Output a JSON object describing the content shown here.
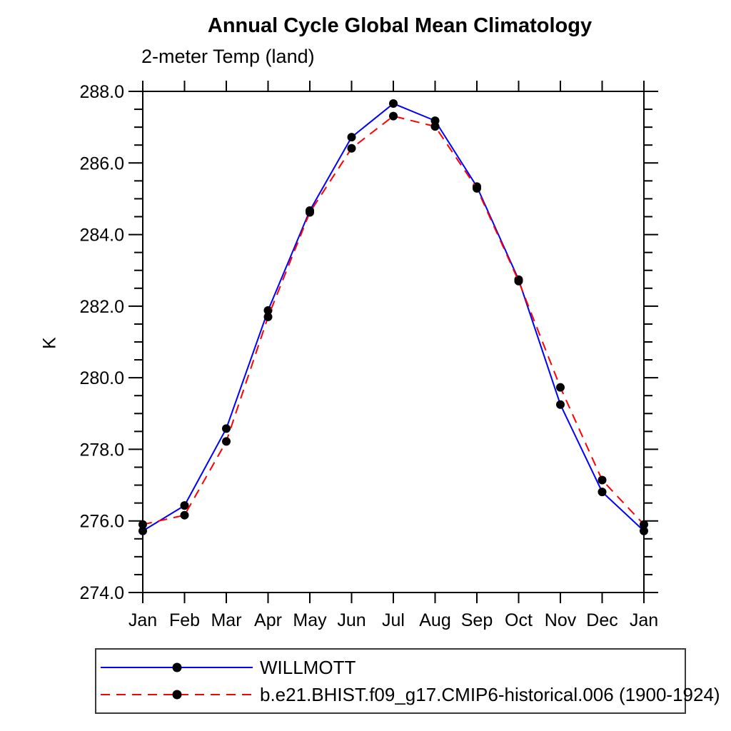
{
  "page": {
    "background": "#ffffff"
  },
  "header": {
    "title": "Annual Cycle Global Mean Climatology",
    "subtitle": "2-meter Temp (land)"
  },
  "chart_data": {
    "type": "line",
    "title": "Annual Cycle Global Mean Climatology",
    "subtitle": "2-meter Temp (land)",
    "xlabel": "",
    "ylabel": "K",
    "x_categories": [
      "Jan",
      "Feb",
      "Mar",
      "Apr",
      "May",
      "Jun",
      "Jul",
      "Aug",
      "Sep",
      "Oct",
      "Nov",
      "Dec",
      "Jan"
    ],
    "ylim": [
      274.0,
      288.0
    ],
    "y_major_tick_step": 2.0,
    "y_minor_tick_step": 0.5,
    "y_major_tick_labels": [
      "274.0",
      "276.0",
      "278.0",
      "280.0",
      "282.0",
      "284.0",
      "286.0",
      "288.0"
    ],
    "grid": false,
    "axis_color": "#000000",
    "marker_color": "#000000",
    "legend_position": "bottom-left-boxed",
    "series": [
      {
        "name": "WILLMOTT",
        "color": "#0000ff",
        "line_style": "solid",
        "marker": "filled-circle",
        "values": [
          275.72,
          276.43,
          278.58,
          281.88,
          284.67,
          286.72,
          287.66,
          287.18,
          285.34,
          282.74,
          279.25,
          276.81,
          275.72
        ]
      },
      {
        "name": "b.e21.BHIST.f09_g17.CMIP6-historical.006 (1900-1924)",
        "color": "#ff0000",
        "line_style": "dashed",
        "marker": "filled-circle",
        "values": [
          275.9,
          276.16,
          278.22,
          281.7,
          284.62,
          286.41,
          287.31,
          287.02,
          285.29,
          282.7,
          279.73,
          277.14,
          275.9
        ]
      }
    ]
  }
}
